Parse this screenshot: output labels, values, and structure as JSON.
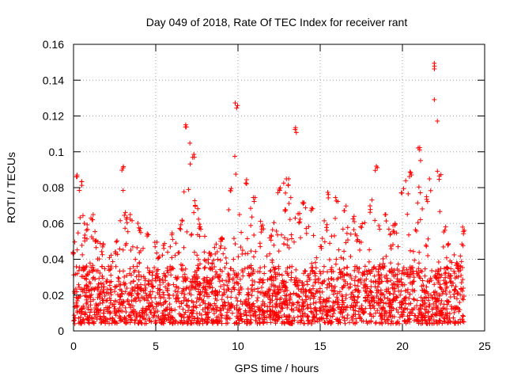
{
  "chart_data": {
    "type": "scatter",
    "title": "Day 049 of 2018, Rate Of TEC Index for receiver rant",
    "xlabel": "GPS time / hours",
    "ylabel": "ROTI / TECUs",
    "xlim": [
      0,
      25
    ],
    "ylim": [
      0,
      0.16
    ],
    "xticks": [
      0,
      5,
      10,
      15,
      20,
      25
    ],
    "yticks": [
      0,
      0.02,
      0.04,
      0.06,
      0.08,
      0.1,
      0.12,
      0.14,
      0.16
    ],
    "xtick_labels": [
      "0",
      "5",
      "10",
      "15",
      "20",
      "25"
    ],
    "ytick_labels": [
      "0",
      "0.02",
      "0.04",
      "0.06",
      "0.08",
      "0.1",
      "0.12",
      "0.14",
      "0.16"
    ],
    "grid": true,
    "marker": "+",
    "series_color": "#ff0000",
    "envelope": [
      [
        0.0,
        0.045
      ],
      [
        0.25,
        0.09
      ],
      [
        0.5,
        0.085
      ],
      [
        0.8,
        0.06
      ],
      [
        1.2,
        0.065
      ],
      [
        1.8,
        0.05
      ],
      [
        2.5,
        0.045
      ],
      [
        3.0,
        0.092
      ],
      [
        3.5,
        0.065
      ],
      [
        4.0,
        0.06
      ],
      [
        4.5,
        0.055
      ],
      [
        5.0,
        0.05
      ],
      [
        5.5,
        0.05
      ],
      [
        6.0,
        0.055
      ],
      [
        6.5,
        0.06
      ],
      [
        6.8,
        0.116
      ],
      [
        7.3,
        0.1
      ],
      [
        7.7,
        0.06
      ],
      [
        8.3,
        0.045
      ],
      [
        9.0,
        0.055
      ],
      [
        9.6,
        0.08
      ],
      [
        9.9,
        0.128
      ],
      [
        10.5,
        0.085
      ],
      [
        11.0,
        0.075
      ],
      [
        11.5,
        0.06
      ],
      [
        12.0,
        0.055
      ],
      [
        12.5,
        0.08
      ],
      [
        13.0,
        0.085
      ],
      [
        13.5,
        0.114
      ],
      [
        14.0,
        0.075
      ],
      [
        14.5,
        0.07
      ],
      [
        15.0,
        0.05
      ],
      [
        15.5,
        0.078
      ],
      [
        16.0,
        0.075
      ],
      [
        16.5,
        0.07
      ],
      [
        17.0,
        0.065
      ],
      [
        17.5,
        0.06
      ],
      [
        18.0,
        0.07
      ],
      [
        18.4,
        0.092
      ],
      [
        19.0,
        0.065
      ],
      [
        19.5,
        0.06
      ],
      [
        20.0,
        0.08
      ],
      [
        20.5,
        0.09
      ],
      [
        21.0,
        0.103
      ],
      [
        21.5,
        0.075
      ],
      [
        22.0,
        0.15
      ],
      [
        22.3,
        0.088
      ],
      [
        22.8,
        0.05
      ],
      [
        23.3,
        0.04
      ],
      [
        23.7,
        0.058
      ]
    ]
  }
}
